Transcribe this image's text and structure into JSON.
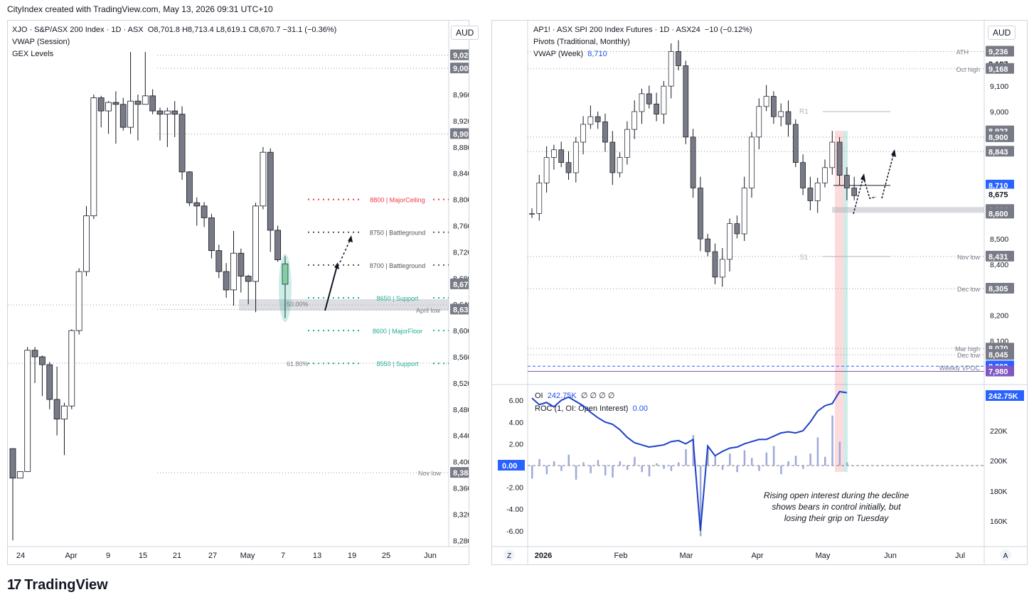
{
  "topbar": {
    "text": "CityIndex created with TradingView.com, May 13, 2026 09:31 UTC+10"
  },
  "left_chart": {
    "header": {
      "symbol_line": "XJO · S&P/ASX 200 Index · 1D · ASX",
      "ohlc_o": "O8,701.8",
      "ohlc_h": "H8,713.4",
      "ohlc_l": "L8,619.1",
      "ohlc_c": "C8,670.7",
      "change": "−31.1 (−0.36%)",
      "indicator1": "VWAP (Session)",
      "indicator2": "GEX Levels"
    },
    "currency": "AUD",
    "price_ticks": [
      "8,960.0",
      "8,920.0",
      "8,880.0",
      "8,840.0",
      "8,800.0",
      "8,760.0",
      "8,720.0",
      "8,680.0",
      "8,640.0",
      "8,600.0",
      "8,560.0",
      "8,520.0",
      "8,480.0",
      "8,440.0",
      "8,400.0",
      "8,360.0",
      "8,320.0",
      "8,280.0"
    ],
    "price_tags": [
      "9,020.0",
      "9,000.0",
      "8,900.0",
      "8,670.7",
      "8,632.2",
      "8,383.2"
    ],
    "date_ticks": [
      "24",
      "Apr",
      "9",
      "15",
      "21",
      "27",
      "May",
      "7",
      "13",
      "19",
      "25",
      "Jun"
    ],
    "levels": [
      {
        "label": "8800 | MajorCeiling",
        "color": "#f23645"
      },
      {
        "label": "8750 | Battleground",
        "color": "#555555"
      },
      {
        "label": "8700 | Battleground",
        "color": "#555555"
      },
      {
        "label": "8650 | Support",
        "color": "#22ab94"
      },
      {
        "label": "8600 | MajorFloor",
        "color": "#22ab94"
      },
      {
        "label": "8550 | Support",
        "color": "#22ab94"
      }
    ],
    "annotations": {
      "fib50": "50.00%",
      "fib618": "61.80%",
      "april_low": "April low",
      "nov_low": "Nov low"
    }
  },
  "right_chart": {
    "header": {
      "symbol_line": "AP1! · ASX SPI 200 Index Futures · 1D · ASX24",
      "change": "−10 (−0.12%)",
      "indicator1": "Pivots (Traditional, Monthly)",
      "indicator2": "VWAP (Week)",
      "vwap_value": "8,710"
    },
    "currency": "AUD",
    "price_ticks": [
      "9,100",
      "9,000",
      "8,500",
      "8,400",
      "8,200",
      "8,100"
    ],
    "price_tags": [
      "9,236",
      "9,187",
      "9,168",
      "8,923",
      "8,900",
      "8,843",
      "8,710",
      "8,675",
      "8,614",
      "8,600",
      "8,431",
      "8,305",
      "8,070",
      "8,045",
      "8,000",
      "7,980"
    ],
    "annotations": {
      "ath": "ATH",
      "oct_high": "Oct high",
      "nov_low": "Nov low",
      "dec_low": "Dec low",
      "mar_high": "Mar high",
      "dec_low2": "Dec low",
      "weekly_vpoc": "Weekly VPOC",
      "r1": "R1",
      "s1": "S1"
    },
    "oi_panel": {
      "oi_label": "OI",
      "oi_value": "242.75K",
      "oi_nulls": "∅ ∅ ∅ ∅",
      "roc_label": "ROC (1, OI: Open Interest)",
      "roc_value": "0.00",
      "left_ticks": [
        "6.00",
        "4.00",
        "2.00",
        "0.00",
        "-2.00",
        "-4.00",
        "-6.00"
      ],
      "right_ticks": [
        "220K",
        "200K",
        "180K",
        "160K"
      ],
      "oi_tag": "242.75K",
      "note_line1": "Rising open interest during the decline",
      "note_line2": "shows bears in control initially, but",
      "note_line3": "losing their grip on Tuesday"
    },
    "date_ticks": [
      "2026",
      "Feb",
      "Mar",
      "Apr",
      "May",
      "Jun",
      "Jul"
    ],
    "corner_left": "Z",
    "corner_right": "A"
  },
  "footer": {
    "brand": "TradingView",
    "mark": "17"
  }
}
